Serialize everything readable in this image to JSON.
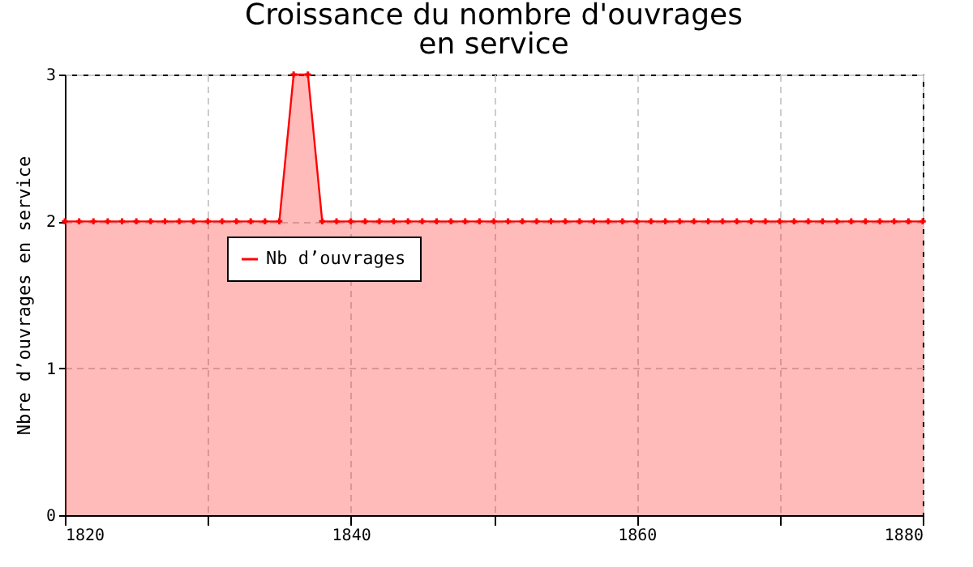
{
  "chart_data": {
    "type": "area",
    "title": "Croissance du nombre d'ouvrages\nen service",
    "ylabel": "Nbre d’ouvrages en service",
    "x": [
      1820,
      1821,
      1822,
      1823,
      1824,
      1825,
      1826,
      1827,
      1828,
      1829,
      1830,
      1831,
      1832,
      1833,
      1834,
      1835,
      1836,
      1837,
      1838,
      1839,
      1840,
      1841,
      1842,
      1843,
      1844,
      1845,
      1846,
      1847,
      1848,
      1849,
      1850,
      1851,
      1852,
      1853,
      1854,
      1855,
      1856,
      1857,
      1858,
      1859,
      1860,
      1861,
      1862,
      1863,
      1864,
      1865,
      1866,
      1867,
      1868,
      1869,
      1870,
      1871,
      1872,
      1873,
      1874,
      1875,
      1876,
      1877,
      1878,
      1879,
      1880
    ],
    "series": [
      {
        "name": "Nb d’ouvrages",
        "color": "#ff0000",
        "values": [
          2,
          2,
          2,
          2,
          2,
          2,
          2,
          2,
          2,
          2,
          2,
          2,
          2,
          2,
          2,
          2,
          3,
          3,
          2,
          2,
          2,
          2,
          2,
          2,
          2,
          2,
          2,
          2,
          2,
          2,
          2,
          2,
          2,
          2,
          2,
          2,
          2,
          2,
          2,
          2,
          2,
          2,
          2,
          2,
          2,
          2,
          2,
          2,
          2,
          2,
          2,
          2,
          2,
          2,
          2,
          2,
          2,
          2,
          2,
          2,
          2
        ]
      }
    ],
    "xlim": [
      1820,
      1880
    ],
    "xticks": [
      1820,
      {
        "value": 1830,
        "label": null
      },
      1840,
      {
        "value": 1850,
        "label": null
      },
      1860,
      {
        "value": 1870,
        "label": null
      },
      1880
    ],
    "ylim": [
      0,
      3
    ],
    "yticks": [
      0,
      1,
      2,
      3
    ],
    "grid": true,
    "legend": "top left",
    "marker": "cross",
    "line_style": "solid"
  }
}
